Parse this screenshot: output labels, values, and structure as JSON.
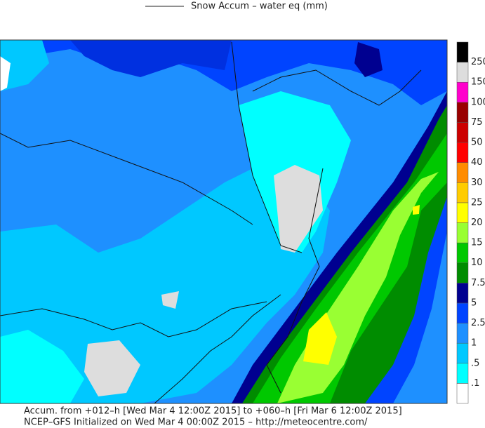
{
  "header": {
    "title": "Snow Accum – water eq (mm)"
  },
  "legend": {
    "labels": [
      ".1",
      ".5",
      "1",
      "2.5",
      "5",
      "7.5",
      "10",
      "15",
      "20",
      "25",
      "30",
      "40",
      "50",
      "75",
      "100",
      "150",
      "250"
    ],
    "colors": [
      "#ffffff",
      "#00ffff",
      "#00c8ff",
      "#1e90ff",
      "#0044ff",
      "#000090",
      "#008c00",
      "#00c800",
      "#99ff33",
      "#ffff00",
      "#ffcc00",
      "#ff8c00",
      "#ff0000",
      "#cc0000",
      "#990000",
      "#ff00cc",
      "#dddddd",
      "#000000"
    ]
  },
  "footer": {
    "line1": "Accum. from +012–h [Wed Mar 4 12:00Z 2015] to +060–h [Fri Mar 6 12:00Z 2015]",
    "line2": "NCEP–GFS Initialized on Wed Mar 4 00:00Z 2015 – http://meteocentre.com/"
  }
}
